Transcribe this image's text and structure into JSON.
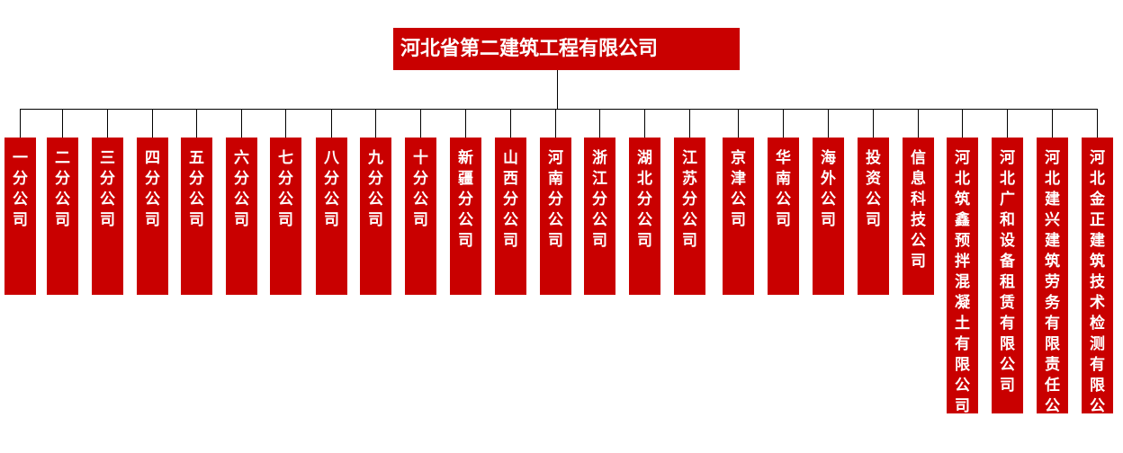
{
  "root": {
    "label": "河北省第二建筑工程有限公司",
    "color": "#c90000"
  },
  "children": [
    {
      "label": "一分公司"
    },
    {
      "label": "二分公司"
    },
    {
      "label": "三分公司"
    },
    {
      "label": "四分公司"
    },
    {
      "label": "五分公司"
    },
    {
      "label": "六分公司"
    },
    {
      "label": "七分公司"
    },
    {
      "label": "八分公司"
    },
    {
      "label": "九分公司"
    },
    {
      "label": "十分公司"
    },
    {
      "label": "新疆分公司"
    },
    {
      "label": "山西分公司"
    },
    {
      "label": "河南分公司"
    },
    {
      "label": "浙江分公司"
    },
    {
      "label": "湖北分公司"
    },
    {
      "label": "江苏分公司"
    },
    {
      "label": "京津公司"
    },
    {
      "label": "华南公司"
    },
    {
      "label": "海外公司"
    },
    {
      "label": "投资公司"
    },
    {
      "label": "信息科技公司"
    },
    {
      "label": "河北筑鑫预拌混凝土有限公司"
    },
    {
      "label": "河北广和设备租赁有限公司"
    },
    {
      "label": "河北建兴建筑劳务有限责任公司"
    },
    {
      "label": "河北金正建筑技术检测有限公司"
    }
  ]
}
